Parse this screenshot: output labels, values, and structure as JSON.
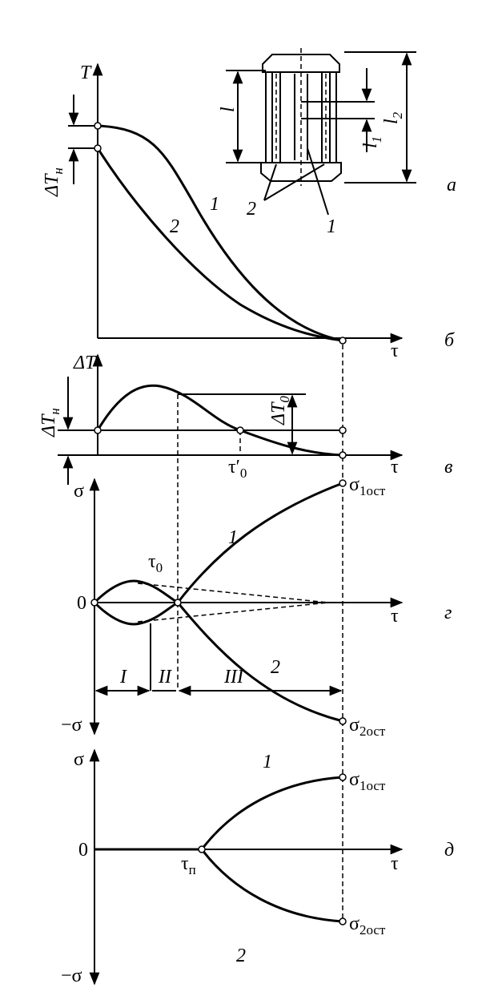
{
  "inset": {
    "letter": "а",
    "l": "l",
    "l1": {
      "base": "l",
      "sub": "1"
    },
    "l2": {
      "base": "l",
      "sub": "2"
    },
    "part1": "1",
    "part2": "2"
  },
  "panel_b": {
    "letter": "б",
    "y_label": "T",
    "x_label": "τ",
    "delta": {
      "base": "ΔT",
      "sub": "н"
    },
    "curve_labels": [
      "1",
      "2"
    ]
  },
  "panel_v": {
    "letter": "в",
    "y_label": "ΔT",
    "x_label": "τ",
    "delta_n": {
      "base": "ΔT",
      "sub": "н"
    },
    "delta_0": {
      "base": "ΔT",
      "sub": "0"
    },
    "tau0": {
      "base": "τ′",
      "sub": "0"
    }
  },
  "panel_g": {
    "letter": "г",
    "y_pos": "σ",
    "zero": "0",
    "y_neg": "−σ",
    "x_label": "τ",
    "tau0": {
      "base": "τ",
      "sub": "0"
    },
    "stages": [
      "I",
      "II",
      "III"
    ],
    "curve_labels": [
      "1",
      "2"
    ],
    "end_labels": [
      {
        "base": "σ",
        "sub": "1ост"
      },
      {
        "base": "σ",
        "sub": "2ост"
      }
    ]
  },
  "panel_d": {
    "letter": "д",
    "y_pos": "σ",
    "zero": "0",
    "y_neg": "−σ",
    "x_label": "τ",
    "tau_p": {
      "base": "τ",
      "sub": "п"
    },
    "curve_labels": [
      "1",
      "2"
    ],
    "end_labels": [
      {
        "base": "σ",
        "sub": "1ост"
      },
      {
        "base": "σ",
        "sub": "2ост"
      }
    ]
  }
}
